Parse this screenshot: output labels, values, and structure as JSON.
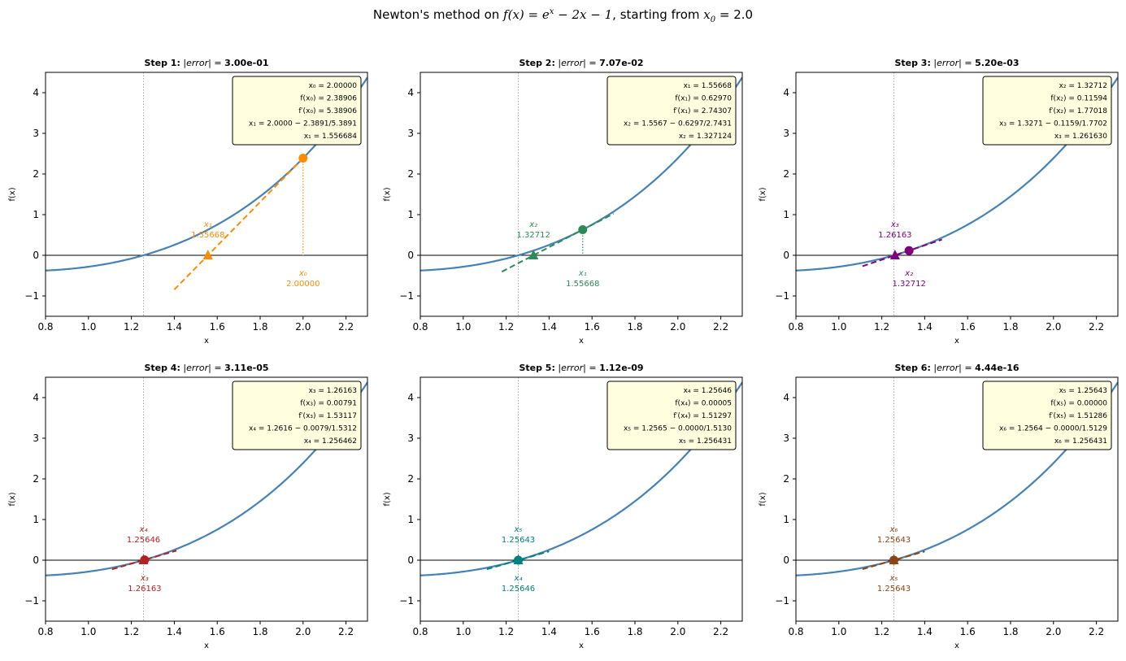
{
  "title": {
    "prefix": "Newton's method on ",
    "fx": "f(x) = e",
    "fx_sup": "x",
    "fx_rest": " − 2x − 1",
    "mid": ", starting from ",
    "x0_label": "x",
    "x0_sub": "0",
    "x0_rest": " = 2.0"
  },
  "colors": {
    "curve": "#4682b4",
    "axis_zero": "#000000",
    "root_line": "#aaaaaa",
    "box_fill": "#ffffe0",
    "steps": [
      "#ff8c00",
      "#2e8b57",
      "#800080",
      "#b22222",
      "#008080",
      "#8b4513"
    ]
  },
  "chart_data": [
    {
      "type": "line",
      "title": "Step 1:  |error| = 3.00e-01",
      "title_step": "Step 1:",
      "title_error": "3.00e-01",
      "xlabel": "x",
      "ylabel": "f(x)",
      "xlim": [
        0.8,
        2.3
      ],
      "ylim": [
        -1.5,
        4.5
      ],
      "xticks": [
        "0.8",
        "1.0",
        "1.2",
        "1.4",
        "1.6",
        "1.8",
        "2.0",
        "2.2"
      ],
      "yticks": [
        "−1",
        "0",
        "1",
        "2",
        "3",
        "4"
      ],
      "root": 1.256431,
      "current": {
        "x": 2.0,
        "fx": 2.38906,
        "label": "x₀",
        "value_text": "2.00000"
      },
      "next": {
        "x": 1.556684,
        "label": "x₁",
        "value_text": "1.55668"
      },
      "tangent": {
        "x_from": 1.4,
        "x_to": 2.0
      },
      "box": [
        "x₀ = 2.00000",
        "f(x₀) = 2.38906",
        "f′(x₀) = 5.38906",
        "x₁ = 2.0000 − 2.3891/5.3891",
        "x₁ = 1.556684"
      ]
    },
    {
      "type": "line",
      "title": "Step 2:  |error| = 7.07e-02",
      "title_step": "Step 2:",
      "title_error": "7.07e-02",
      "xlabel": "x",
      "ylabel": "f(x)",
      "xlim": [
        0.8,
        2.3
      ],
      "ylim": [
        -1.5,
        4.5
      ],
      "xticks": [
        "0.8",
        "1.0",
        "1.2",
        "1.4",
        "1.6",
        "1.8",
        "2.0",
        "2.2"
      ],
      "yticks": [
        "−1",
        "0",
        "1",
        "2",
        "3",
        "4"
      ],
      "root": 1.256431,
      "current": {
        "x": 1.55668,
        "fx": 0.6297,
        "label": "x₁",
        "value_text": "1.55668"
      },
      "next": {
        "x": 1.327124,
        "label": "x₂",
        "value_text": "1.32712"
      },
      "tangent": {
        "x_from": 1.18,
        "x_to": 1.7
      },
      "box": [
        "x₁ = 1.55668",
        "f(x₁) = 0.62970",
        "f′(x₁) = 2.74307",
        "x₂ = 1.5567 − 0.6297/2.7431",
        "x₂ = 1.327124"
      ]
    },
    {
      "type": "line",
      "title": "Step 3:  |error| = 5.20e-03",
      "title_step": "Step 3:",
      "title_error": "5.20e-03",
      "xlabel": "x",
      "ylabel": "f(x)",
      "xlim": [
        0.8,
        2.3
      ],
      "ylim": [
        -1.5,
        4.5
      ],
      "xticks": [
        "0.8",
        "1.0",
        "1.2",
        "1.4",
        "1.6",
        "1.8",
        "2.0",
        "2.2"
      ],
      "yticks": [
        "−1",
        "0",
        "1",
        "2",
        "3",
        "4"
      ],
      "root": 1.256431,
      "current": {
        "x": 1.32712,
        "fx": 0.11594,
        "label": "x₂",
        "value_text": "1.32712"
      },
      "next": {
        "x": 1.26163,
        "label": "x₃",
        "value_text": "1.26163"
      },
      "tangent": {
        "x_from": 1.11,
        "x_to": 1.48
      },
      "box": [
        "x₂ = 1.32712",
        "f(x₂) = 0.11594",
        "f′(x₂) = 1.77018",
        "x₃ = 1.3271 − 0.1159/1.7702",
        "x₃ = 1.261630"
      ]
    },
    {
      "type": "line",
      "title": "Step 4:  |error| = 3.11e-05",
      "title_step": "Step 4:",
      "title_error": "3.11e-05",
      "xlabel": "x",
      "ylabel": "f(x)",
      "xlim": [
        0.8,
        2.3
      ],
      "ylim": [
        -1.5,
        4.5
      ],
      "xticks": [
        "0.8",
        "1.0",
        "1.2",
        "1.4",
        "1.6",
        "1.8",
        "2.0",
        "2.2"
      ],
      "yticks": [
        "−1",
        "0",
        "1",
        "2",
        "3",
        "4"
      ],
      "root": 1.256431,
      "current": {
        "x": 1.26163,
        "fx": 0.00791,
        "label": "x₃",
        "value_text": "1.26163"
      },
      "next": {
        "x": 1.256462,
        "label": "x₄",
        "value_text": "1.25646"
      },
      "tangent": {
        "x_from": 1.11,
        "x_to": 1.41
      },
      "box": [
        "x₃ = 1.26163",
        "f(x₃) = 0.00791",
        "f′(x₃) = 1.53117",
        "x₄ = 1.2616 − 0.0079/1.5312",
        "x₄ = 1.256462"
      ]
    },
    {
      "type": "line",
      "title": "Step 5:  |error| = 1.12e-09",
      "title_step": "Step 5:",
      "title_error": "1.12e-09",
      "xlabel": "x",
      "ylabel": "f(x)",
      "xlim": [
        0.8,
        2.3
      ],
      "ylim": [
        -1.5,
        4.5
      ],
      "xticks": [
        "0.8",
        "1.0",
        "1.2",
        "1.4",
        "1.6",
        "1.8",
        "2.0",
        "2.2"
      ],
      "yticks": [
        "−1",
        "0",
        "1",
        "2",
        "3",
        "4"
      ],
      "root": 1.256431,
      "current": {
        "x": 1.25646,
        "fx": 5e-05,
        "label": "x₄",
        "value_text": "1.25646"
      },
      "next": {
        "x": 1.256431,
        "label": "x₅",
        "value_text": "1.25643"
      },
      "tangent": {
        "x_from": 1.11,
        "x_to": 1.4
      },
      "box": [
        "x₄ = 1.25646",
        "f(x₄) = 0.00005",
        "f′(x₄) = 1.51297",
        "x₅ = 1.2565 − 0.0000/1.5130",
        "x₅ = 1.256431"
      ]
    },
    {
      "type": "line",
      "title": "Step 6:  |error| = 4.44e-16",
      "title_step": "Step 6:",
      "title_error": "4.44e-16",
      "xlabel": "x",
      "ylabel": "f(x)",
      "xlim": [
        0.8,
        2.3
      ],
      "ylim": [
        -1.5,
        4.5
      ],
      "xticks": [
        "0.8",
        "1.0",
        "1.2",
        "1.4",
        "1.6",
        "1.8",
        "2.0",
        "2.2"
      ],
      "yticks": [
        "−1",
        "0",
        "1",
        "2",
        "3",
        "4"
      ],
      "root": 1.256431,
      "current": {
        "x": 1.25643,
        "fx": 0.0,
        "label": "x₅",
        "value_text": "1.25643"
      },
      "next": {
        "x": 1.256431,
        "label": "x₆",
        "value_text": "1.25643"
      },
      "tangent": {
        "x_from": 1.11,
        "x_to": 1.4
      },
      "box": [
        "x₅ = 1.25643",
        "f(x₅) = 0.00000",
        "f′(x₅) = 1.51286",
        "x₆ = 1.2564 − 0.0000/1.5129",
        "x₆ = 1.256431"
      ]
    }
  ]
}
